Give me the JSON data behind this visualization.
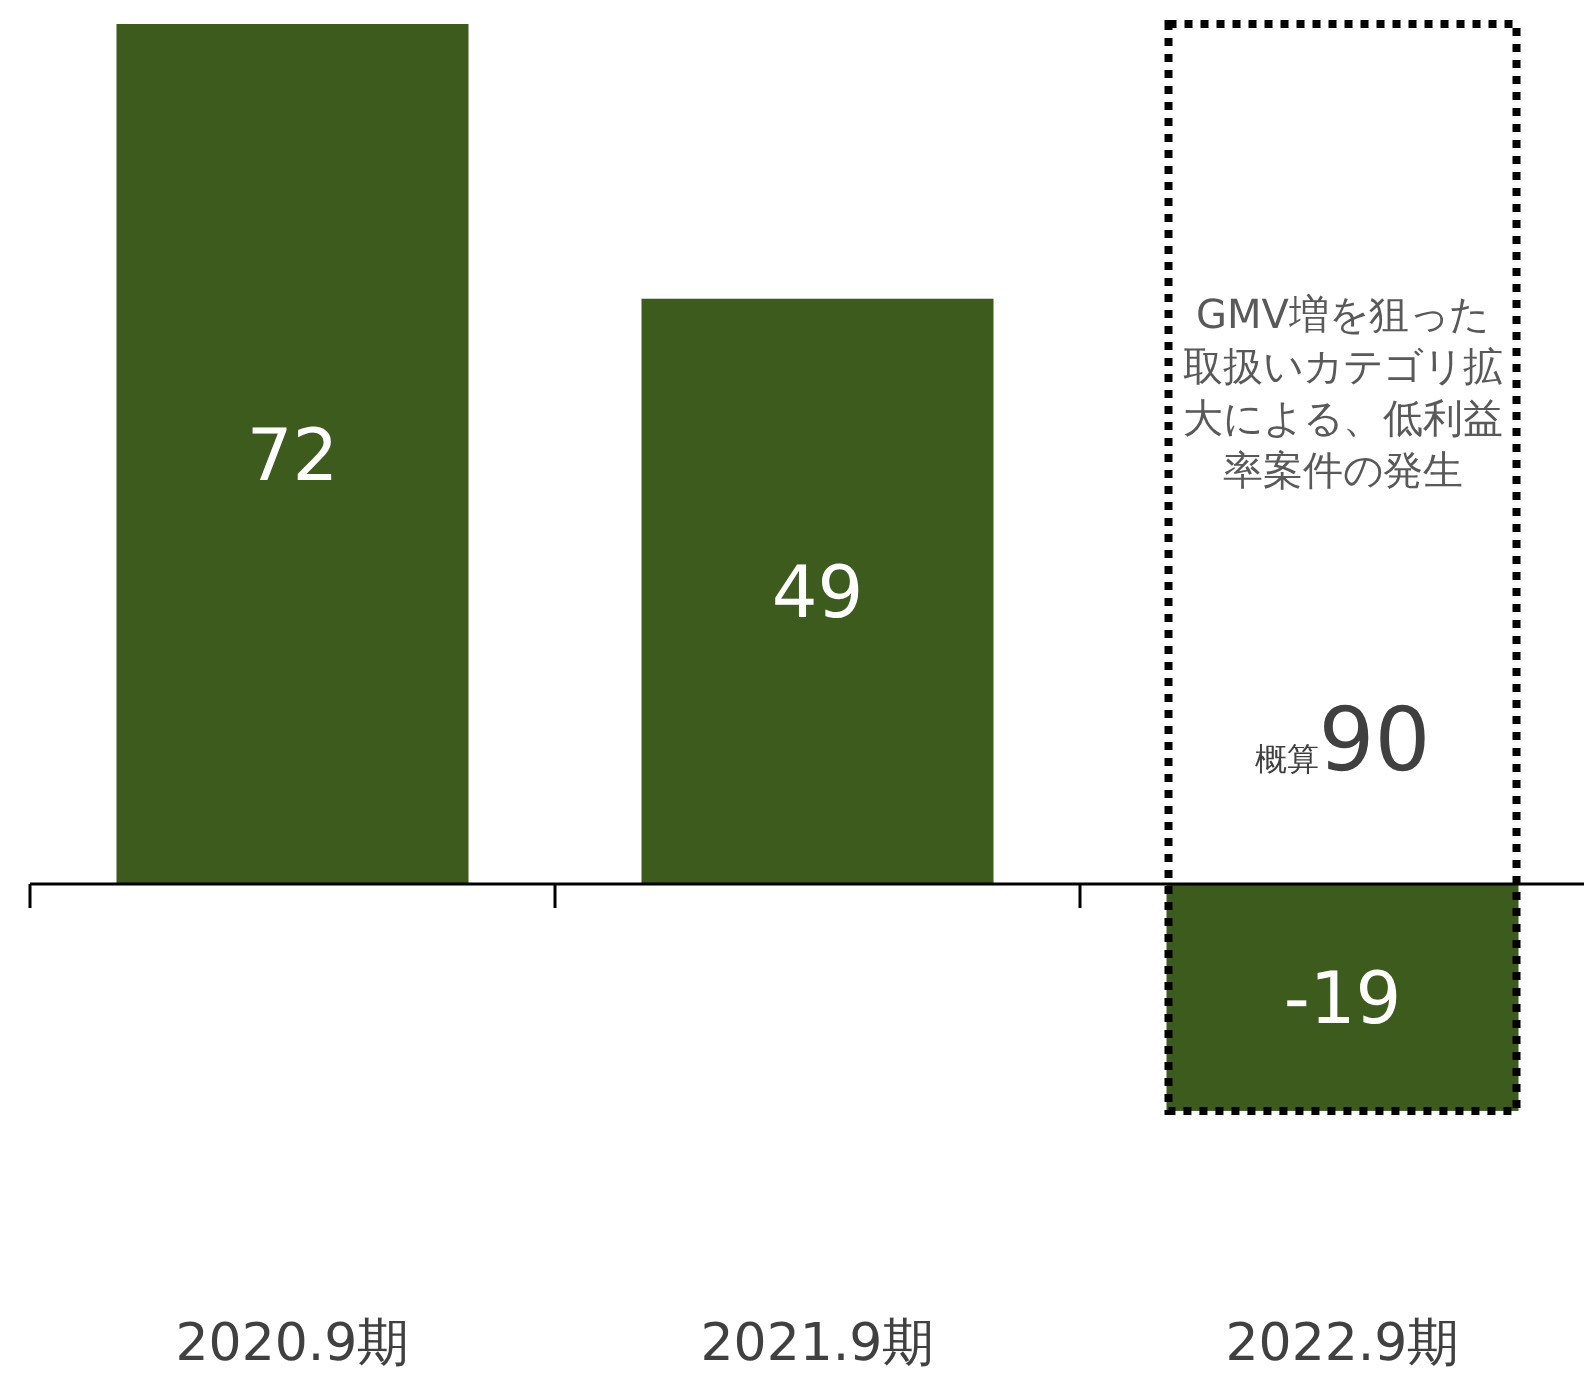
{
  "chart_data": {
    "type": "bar",
    "categories": [
      "2020.9期",
      "2021.9期",
      "2022.9期"
    ],
    "values": [
      72,
      49,
      -19
    ],
    "color": "#3d5b1d",
    "data_labels": true,
    "annotations": [
      "GMV増を狙った取扱いカテゴリ拡大による、低利益率案件の発生",
      "概算90"
    ]
  }
}
